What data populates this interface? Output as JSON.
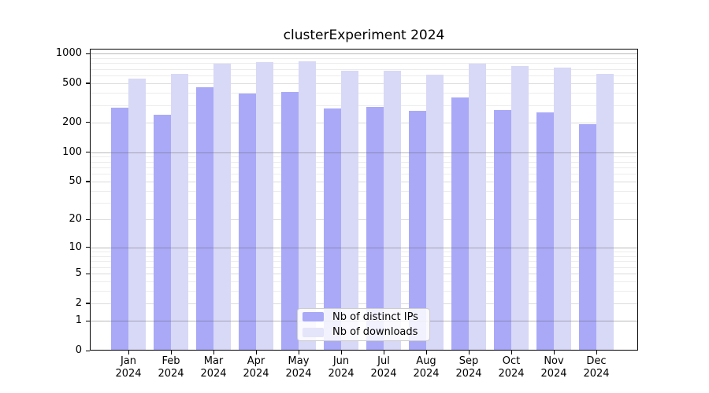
{
  "title": "clusterExperiment 2024",
  "chart_data": {
    "type": "bar",
    "title": "clusterExperiment 2024",
    "categories": [
      "Jan",
      "Feb",
      "Mar",
      "Apr",
      "May",
      "Jun",
      "Jul",
      "Aug",
      "Sep",
      "Oct",
      "Nov",
      "Dec"
    ],
    "year": "2024",
    "series": [
      {
        "name": "Nb of distinct IPs",
        "color": "#a9a9f8",
        "values": [
          281,
          238,
          454,
          392,
          408,
          279,
          287,
          263,
          356,
          266,
          254,
          192
        ]
      },
      {
        "name": "Nb of downloads",
        "color": "#d8d8f7",
        "values": [
          559,
          617,
          793,
          817,
          832,
          667,
          672,
          615,
          793,
          742,
          715,
          625
        ]
      }
    ],
    "y_scale": "log1p",
    "y_ticks": [
      0,
      1,
      2,
      5,
      10,
      20,
      50,
      100,
      200,
      500,
      1000
    ],
    "ylim": [
      0,
      1000
    ],
    "grid": true,
    "legend_position": "lower center"
  },
  "legend": {
    "items": [
      {
        "label": "Nb of distinct IPs",
        "swatch_color": "#a9a9f8"
      },
      {
        "label": "Nb of downloads",
        "swatch_color": "#e4e4fa"
      }
    ]
  },
  "colors": {
    "grid_major": "#b4b4b4",
    "grid_minor": "#ececec",
    "grid_sub": "#dcdcdc",
    "axis": "#000000",
    "background": "#ffffff"
  }
}
